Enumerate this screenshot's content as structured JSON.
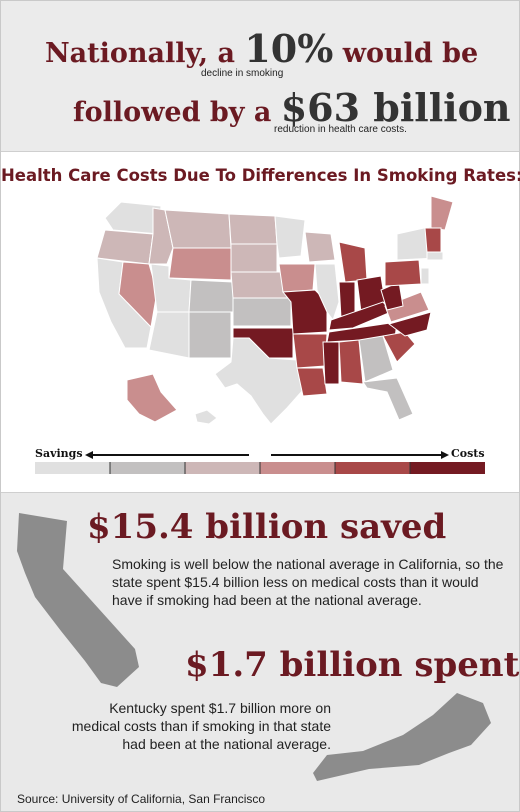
{
  "header": {
    "line1_prefix": "Nationally, a",
    "line1_value": "10%",
    "line1_suffix": "would be",
    "line1_small": "decline in smoking",
    "line2_prefix": "followed by a",
    "line2_value": "$63 billion",
    "line2_small": "reduction in health care costs."
  },
  "map": {
    "title": "Health Care Costs Due To Differences In Smoking Rates:",
    "legend": {
      "left_label": "Savings",
      "right_label": "Costs",
      "scale_colors": [
        "#e0e0e0",
        "#c2c0c0",
        "#cdb7b7",
        "#c98e8e",
        "#a84848",
        "#741a22"
      ]
    }
  },
  "california": {
    "amount": "$15.4 billion saved",
    "text": "Smoking is well below the national average in California, so the state spent $15.4 billion less on medical costs than it would have if smoking had been at the national average."
  },
  "kentucky": {
    "amount": "$1.7 billion spent",
    "text": "Kentucky spent $1.7 billion more on medical costs than if smoking in that state had been at the national average."
  },
  "source": "Source: University of California, San Francisco"
}
